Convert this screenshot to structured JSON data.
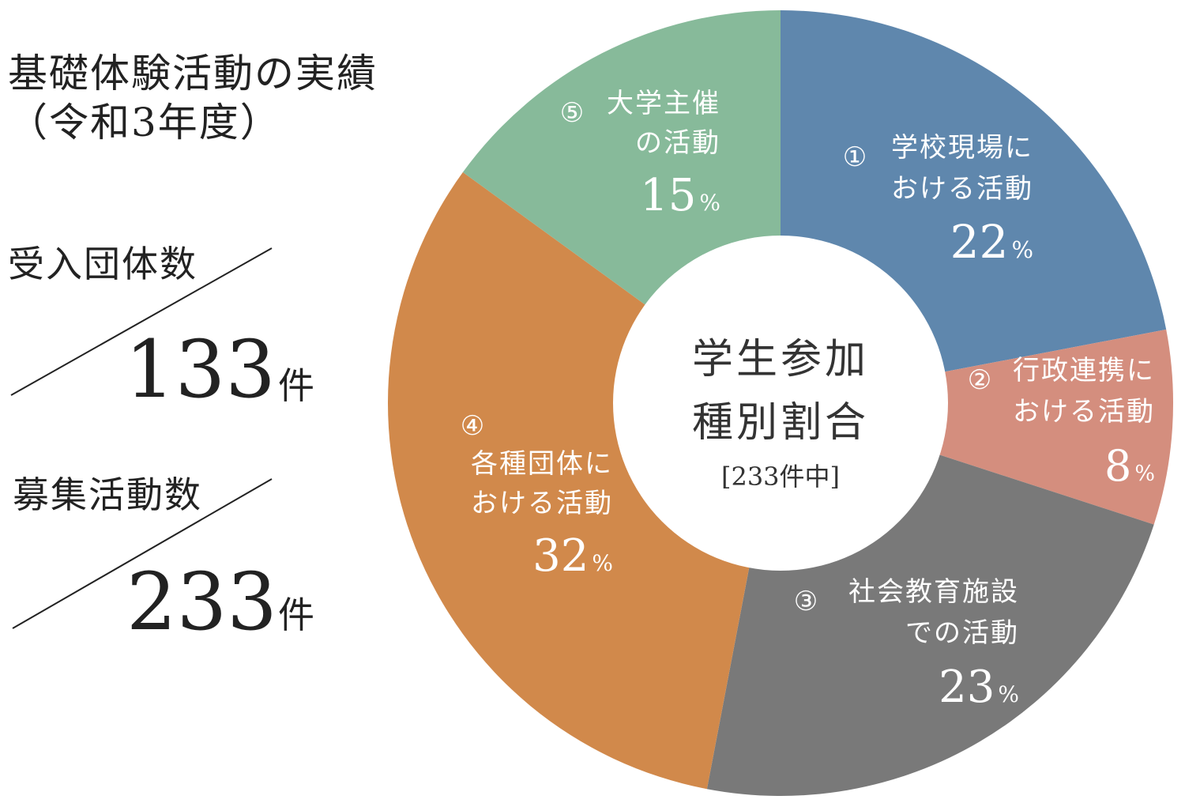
{
  "title": {
    "line1": "基礎体験活動の実績",
    "line2": "（令和3年度）"
  },
  "stats": [
    {
      "label": "受入団体数",
      "value": "133",
      "unit": "件"
    },
    {
      "label": "募集活動数",
      "value": "233",
      "unit": "件"
    }
  ],
  "chart_data": {
    "type": "pie",
    "center_label": [
      "学生参加",
      "種別割合"
    ],
    "center_sublabel": "[233件中]",
    "series": [
      {
        "marker": "①",
        "lines": [
          "学校現場に",
          "おける活動"
        ],
        "value": 22,
        "unit": "%",
        "color": "#5f87ad"
      },
      {
        "marker": "②",
        "lines": [
          "行政連携に",
          "おける活動"
        ],
        "value": 8,
        "unit": "%",
        "color": "#d48e7e"
      },
      {
        "marker": "③",
        "lines": [
          "社会教育施設",
          "での活動"
        ],
        "value": 23,
        "unit": "%",
        "color": "#797979"
      },
      {
        "marker": "④",
        "lines": [
          "各種団体に",
          "おける活動"
        ],
        "value": 32,
        "unit": "%",
        "color": "#d1894b"
      },
      {
        "marker": "⑤",
        "lines": [
          "大学主催",
          "の活動"
        ],
        "value": 15,
        "unit": "%",
        "color": "#87ba9a"
      }
    ]
  }
}
